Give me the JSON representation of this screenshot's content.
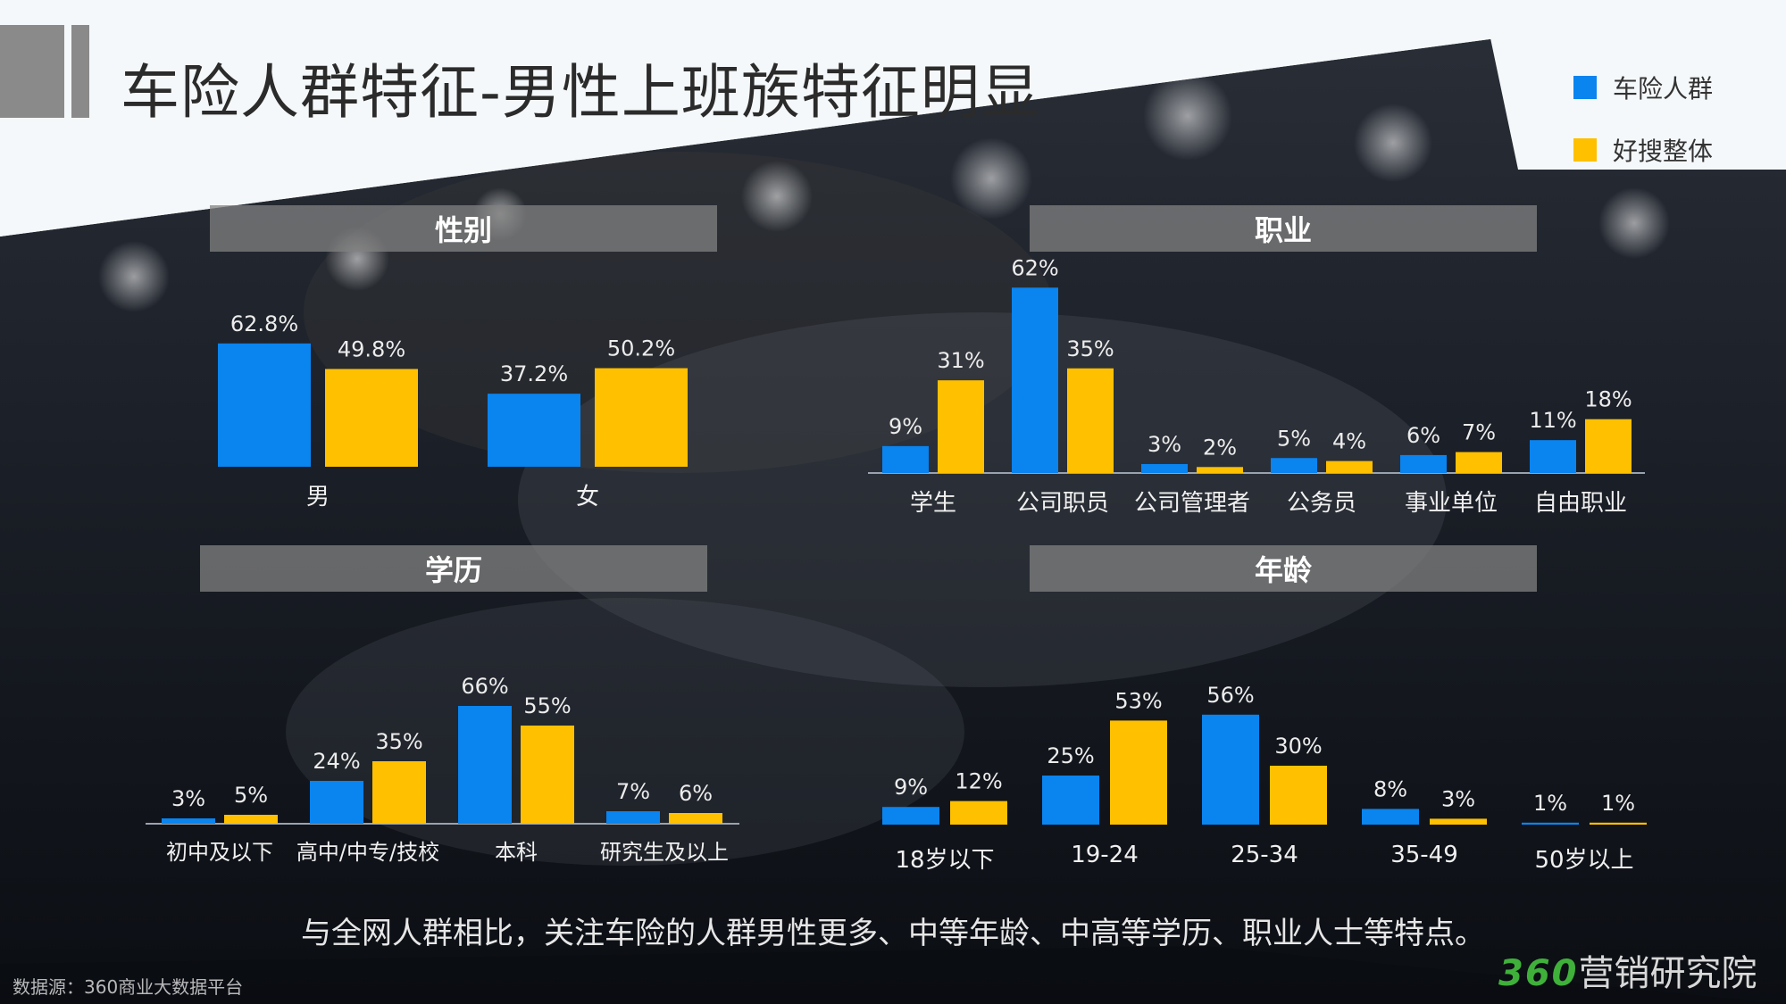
{
  "title": "车险人群特征-男性上班族特征明显",
  "colors": {
    "series_a": "#0a84ef",
    "series_b": "#ffc000"
  },
  "legend": [
    "车险人群",
    "好搜整体"
  ],
  "summary": "与全网人群相比，关注车险的人群男性更多、中等年龄、中高等学历、职业人士等特点。",
  "source": "数据源：360商业大数据平台",
  "brand": {
    "number": "360",
    "text": "营销研究院"
  },
  "chart_data": [
    {
      "type": "bar",
      "title": "性别",
      "categories": [
        "男",
        "女"
      ],
      "series": [
        {
          "name": "车险人群",
          "values": [
            62.8,
            37.2
          ],
          "labels": [
            "62.8%",
            "37.2%"
          ]
        },
        {
          "name": "好搜整体",
          "values": [
            49.8,
            50.2
          ],
          "labels": [
            "49.8%",
            "50.2%"
          ]
        }
      ]
    },
    {
      "type": "bar",
      "title": "职业",
      "categories": [
        "学生",
        "公司职员",
        "公司管理者",
        "公务员",
        "事业单位",
        "自由职业"
      ],
      "series": [
        {
          "name": "车险人群",
          "values": [
            9,
            62,
            3,
            5,
            6,
            11
          ],
          "labels": [
            "9%",
            "62%",
            "3%",
            "5%",
            "6%",
            "11%"
          ]
        },
        {
          "name": "好搜整体",
          "values": [
            31,
            35,
            2,
            4,
            7,
            18
          ],
          "labels": [
            "31%",
            "35%",
            "2%",
            "4%",
            "7%",
            "18%"
          ]
        }
      ]
    },
    {
      "type": "bar",
      "title": "学历",
      "categories": [
        "初中及以下",
        "高中/中专/技校",
        "本科",
        "研究生及以上"
      ],
      "series": [
        {
          "name": "车险人群",
          "values": [
            3,
            24,
            66,
            7
          ],
          "labels": [
            "3%",
            "24%",
            "66%",
            "7%"
          ]
        },
        {
          "name": "好搜整体",
          "values": [
            5,
            35,
            55,
            6
          ],
          "labels": [
            "5%",
            "35%",
            "55%",
            "6%"
          ]
        }
      ]
    },
    {
      "type": "bar",
      "title": "年龄",
      "categories": [
        "18岁以下",
        "19-24",
        "25-34",
        "35-49",
        "50岁以上"
      ],
      "series": [
        {
          "name": "车险人群",
          "values": [
            9,
            25,
            56,
            8,
            1
          ],
          "labels": [
            "9%",
            "25%",
            "56%",
            "8%",
            "1%"
          ]
        },
        {
          "name": "好搜整体",
          "values": [
            12,
            53,
            30,
            3,
            1
          ],
          "labels": [
            "12%",
            "53%",
            "30%",
            "3%",
            "1%"
          ]
        }
      ]
    }
  ]
}
